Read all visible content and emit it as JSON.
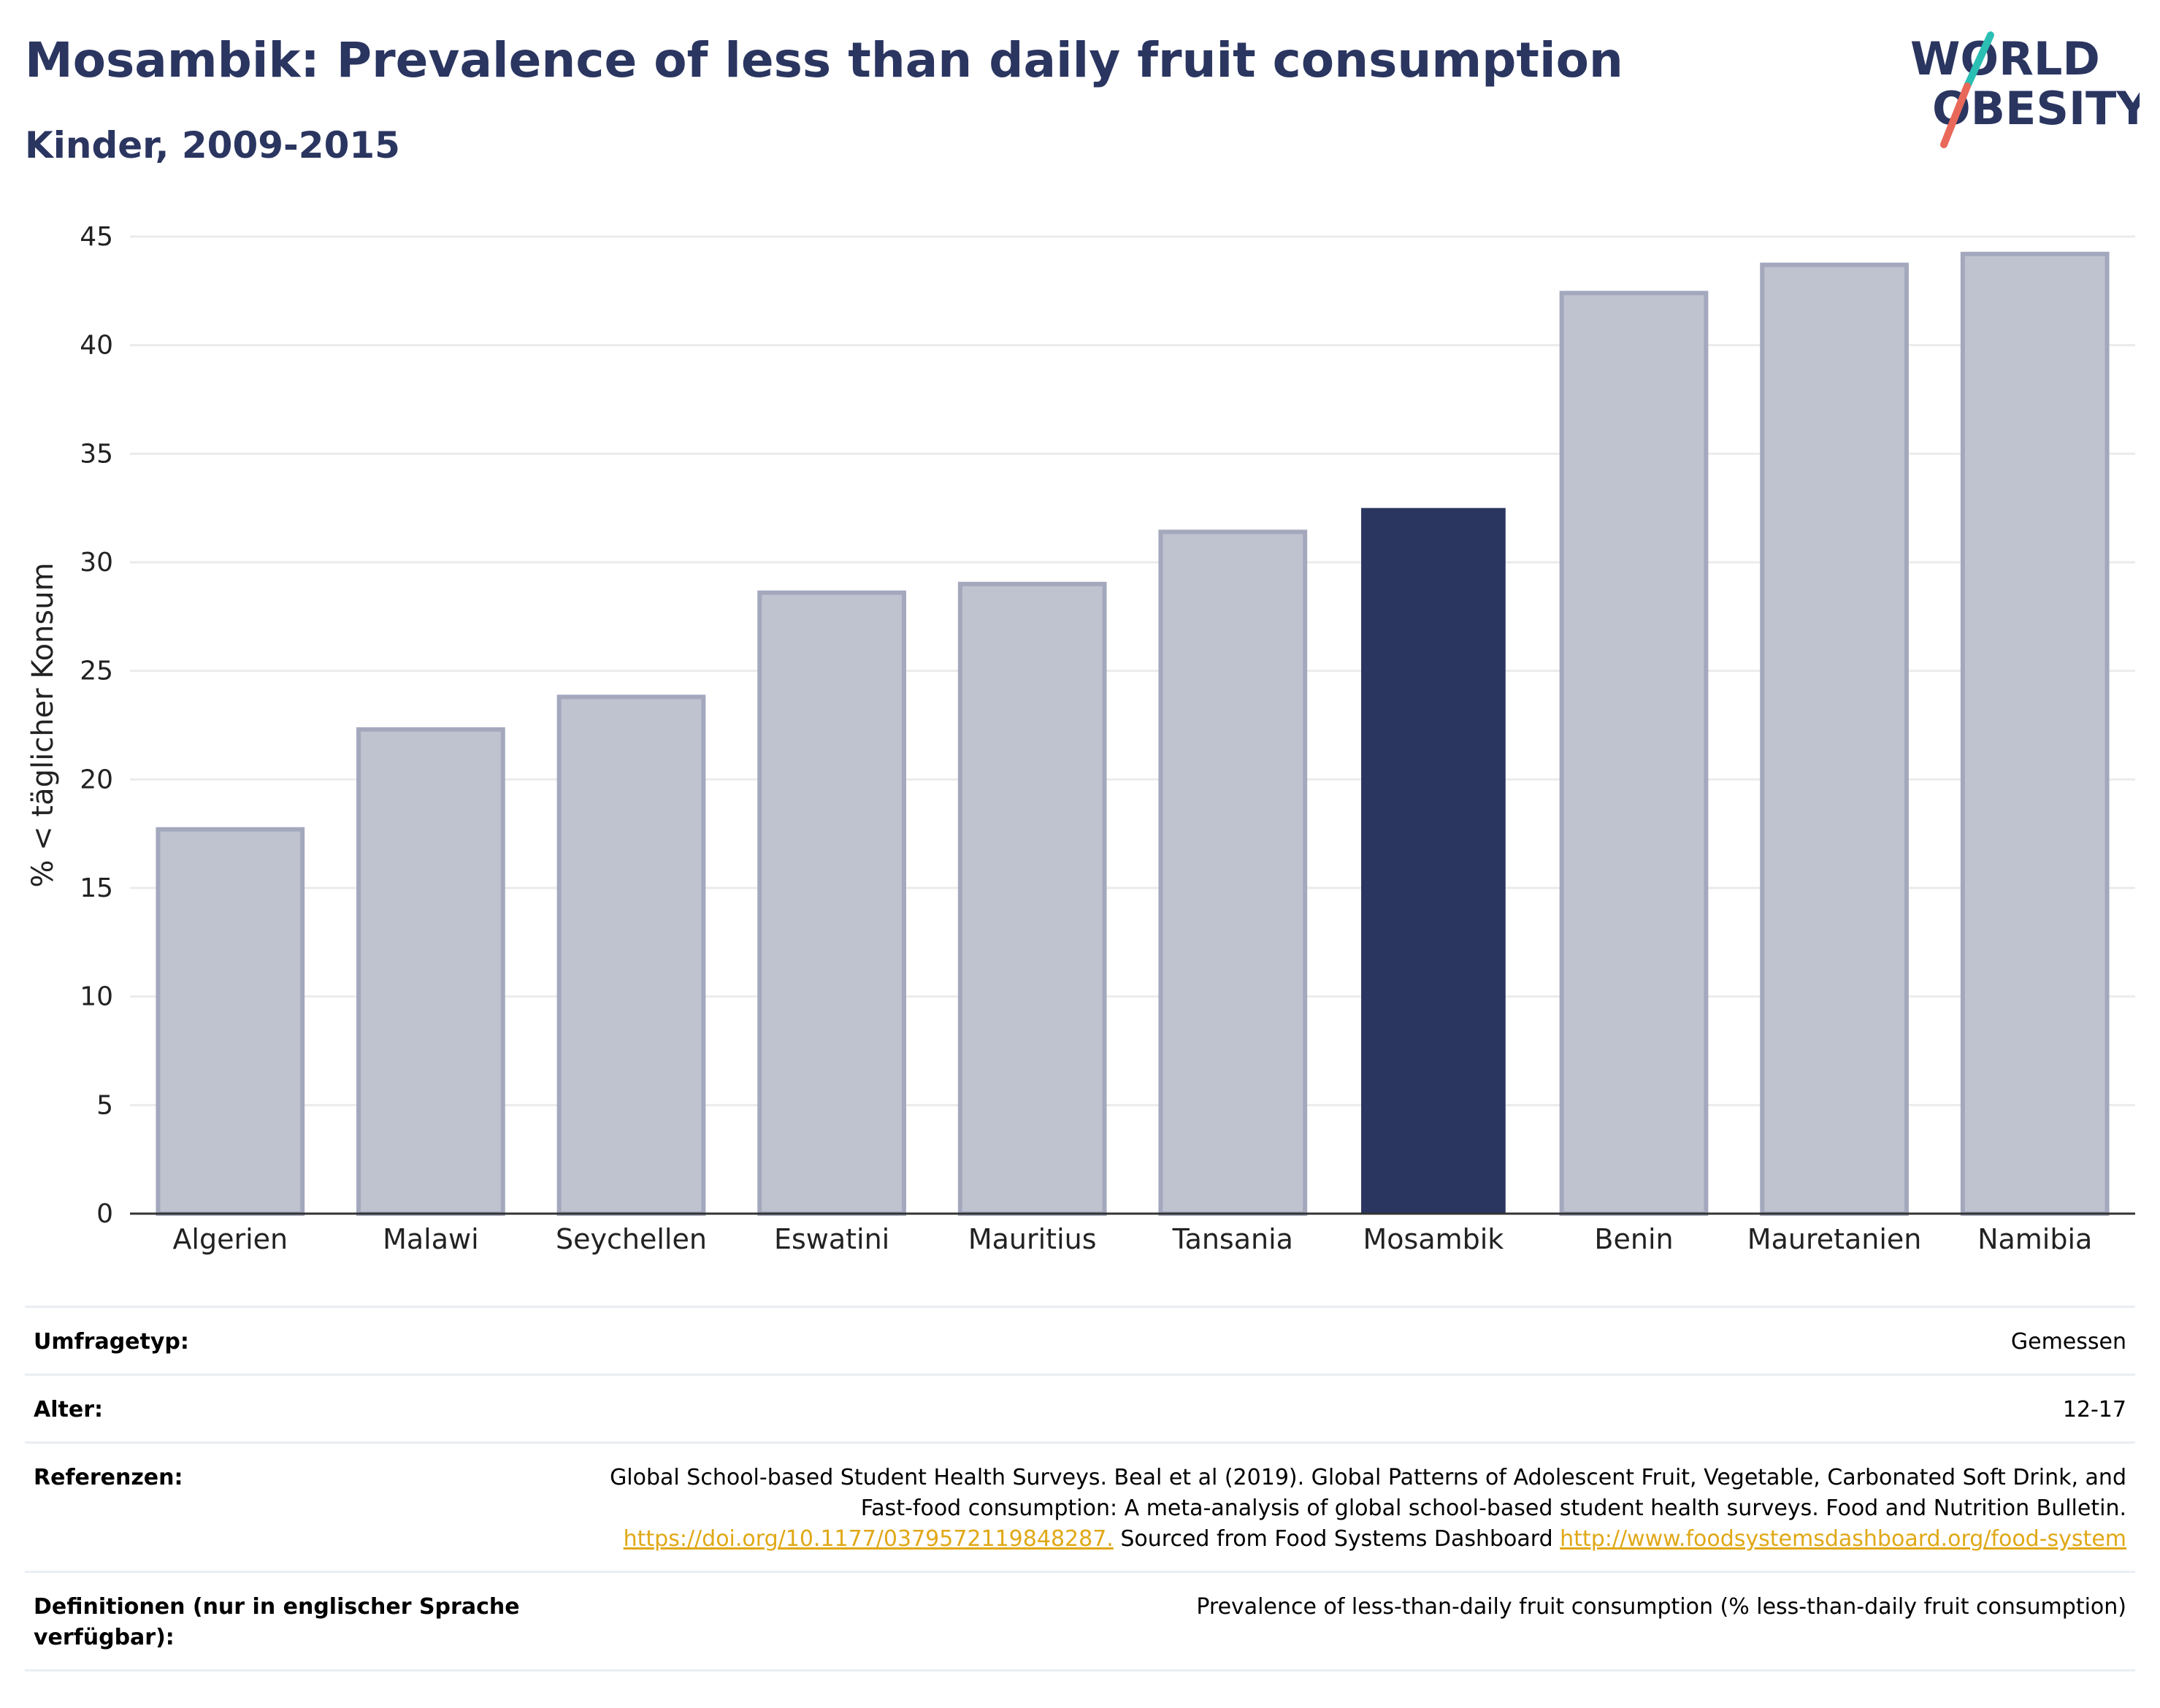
{
  "header": {
    "title": "Mosambik: Prevalence of less than daily fruit consumption",
    "subtitle": "Kinder, 2009-2015"
  },
  "logo": {
    "line1": "WORLD",
    "line2": "OBESITY",
    "slash_colors": [
      "#2bbfb4",
      "#e8685a"
    ]
  },
  "chart_data": {
    "type": "bar",
    "categories": [
      "Algerien",
      "Malawi",
      "Seychellen",
      "Eswatini",
      "Mauritius",
      "Tansania",
      "Mosambik",
      "Benin",
      "Mauretanien",
      "Namibia"
    ],
    "values": [
      17.7,
      22.3,
      23.8,
      28.6,
      29.0,
      31.4,
      32.5,
      42.4,
      43.7,
      44.2
    ],
    "highlight": "Mosambik",
    "ylabel": "% < täglicher Konsum",
    "ylim": [
      0,
      45
    ],
    "yticks": [
      0,
      5,
      10,
      15,
      20,
      25,
      30,
      35,
      40,
      45
    ],
    "grid": true,
    "colors": {
      "bar": "#bfc2cf",
      "bar_edge": "#a3a8bd",
      "highlight": "#2a3560",
      "grid": "#ebebeb",
      "axis": "#333333"
    }
  },
  "info": {
    "survey_type_label": "Umfragetyp:",
    "survey_type_value": "Gemessen",
    "age_label": "Alter:",
    "age_value": "12-17",
    "references_label": "Referenzen:",
    "references_text": "Global School-based Student Health Surveys. Beal et al (2019). Global Patterns of Adolescent Fruit, Vegetable, Carbonated Soft Drink, and Fast-food consumption: A meta-analysis of global school-based student health surveys. Food and Nutrition Bulletin.",
    "references_link1": "https://doi.org/10.1177/0379572119848287.",
    "references_mid": " Sourced from Food Systems Dashboard ",
    "references_link2": "http://www.foodsystemsdashboard.org/food-system",
    "definitions_label": "Definitionen (nur in englischer Sprache verfügbar):",
    "definitions_value": "Prevalence of less-than-daily fruit consumption (% less-than-daily fruit consumption)"
  }
}
